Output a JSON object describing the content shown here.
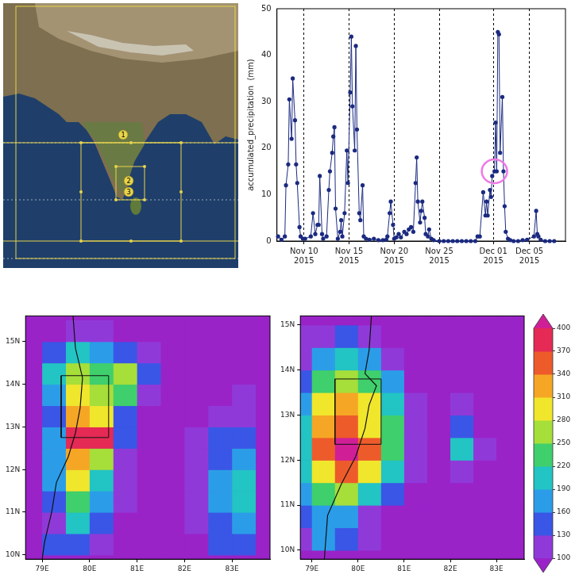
{
  "map": {
    "labels": [
      "1",
      "2",
      "3"
    ]
  },
  "chart_data": [
    {
      "type": "line",
      "ylabel": "accumulated_precipitation  (mm)",
      "color": "#1b2a80",
      "marker": "circle",
      "grid": "x",
      "xlim": [
        "2015-11-07",
        "2015-12-09"
      ],
      "ylim": [
        0,
        50
      ],
      "xticks": [
        {
          "value": "2015-11-10",
          "label": "Nov 10\n2015"
        },
        {
          "value": "2015-11-15",
          "label": "Nov 15\n2015"
        },
        {
          "value": "2015-11-20",
          "label": "Nov 20\n2015"
        },
        {
          "value": "2015-11-25",
          "label": "Nov 25\n2015"
        },
        {
          "value": "2015-12-01",
          "label": "Dec 01\n2015"
        },
        {
          "value": "2015-12-05",
          "label": "Dec 05\n2015"
        }
      ],
      "yticks": [
        0,
        10,
        20,
        30,
        40,
        50
      ],
      "highlight": {
        "x": "2015-12-01T03:00",
        "y": 15,
        "color": "#ee7ae6"
      },
      "x": [
        "2015-11-07T03:00",
        "2015-11-07T12:00",
        "2015-11-07T21:00",
        "2015-11-08T00:00",
        "2015-11-08T06:00",
        "2015-11-08T09:00",
        "2015-11-08T15:00",
        "2015-11-08T18:00",
        "2015-11-09T00:00",
        "2015-11-09T03:00",
        "2015-11-09T06:00",
        "2015-11-09T12:00",
        "2015-11-09T15:00",
        "2015-11-09T21:00",
        "2015-11-10T03:00",
        "2015-11-10T18:00",
        "2015-11-11T00:00",
        "2015-11-11T06:00",
        "2015-11-11T12:00",
        "2015-11-11T15:00",
        "2015-11-11T18:00",
        "2015-11-12T00:00",
        "2015-11-12T03:00",
        "2015-11-12T12:00",
        "2015-11-12T18:00",
        "2015-11-12T21:00",
        "2015-11-13T03:00",
        "2015-11-13T06:00",
        "2015-11-13T09:00",
        "2015-11-13T12:00",
        "2015-11-13T18:00",
        "2015-11-14T00:00",
        "2015-11-14T03:00",
        "2015-11-14T06:00",
        "2015-11-14T12:00",
        "2015-11-14T18:00",
        "2015-11-14T21:00",
        "2015-11-15T03:00",
        "2015-11-15T06:00",
        "2015-11-15T09:00",
        "2015-11-15T15:00",
        "2015-11-15T18:00",
        "2015-11-15T21:00",
        "2015-11-16T03:00",
        "2015-11-16T06:00",
        "2015-11-16T12:00",
        "2015-11-16T15:00",
        "2015-11-16T21:00",
        "2015-11-17T06:00",
        "2015-11-17T18:00",
        "2015-11-18T06:00",
        "2015-11-18T18:00",
        "2015-11-19T03:00",
        "2015-11-19T06:00",
        "2015-11-19T12:00",
        "2015-11-19T15:00",
        "2015-11-19T21:00",
        "2015-11-20T00:00",
        "2015-11-20T06:00",
        "2015-11-20T12:00",
        "2015-11-20T18:00",
        "2015-11-21T03:00",
        "2015-11-21T09:00",
        "2015-11-21T15:00",
        "2015-11-21T21:00",
        "2015-11-22T03:00",
        "2015-11-22T09:00",
        "2015-11-22T12:00",
        "2015-11-22T15:00",
        "2015-11-22T21:00",
        "2015-11-23T00:00",
        "2015-11-23T03:00",
        "2015-11-23T09:00",
        "2015-11-23T12:00",
        "2015-11-23T18:00",
        "2015-11-23T21:00",
        "2015-11-24T03:00",
        "2015-11-24T09:00",
        "2015-11-25T00:00",
        "2015-11-25T12:00",
        "2015-11-26T00:00",
        "2015-11-26T12:00",
        "2015-11-27T00:00",
        "2015-11-27T12:00",
        "2015-11-28T00:00",
        "2015-11-28T12:00",
        "2015-11-29T00:00",
        "2015-11-29T06:00",
        "2015-11-29T12:00",
        "2015-11-29T21:00",
        "2015-11-30T03:00",
        "2015-11-30T06:00",
        "2015-11-30T09:00",
        "2015-11-30T15:00",
        "2015-11-30T18:00",
        "2015-11-30T21:00",
        "2015-12-01T03:00",
        "2015-12-01T06:00",
        "2015-12-01T09:00",
        "2015-12-01T12:00",
        "2015-12-01T15:00",
        "2015-12-01T18:00",
        "2015-12-02T00:00",
        "2015-12-02T03:00",
        "2015-12-02T06:00",
        "2015-12-02T09:00",
        "2015-12-02T15:00",
        "2015-12-02T21:00",
        "2015-12-03T06:00",
        "2015-12-03T18:00",
        "2015-12-04T06:00",
        "2015-12-04T18:00",
        "2015-12-05T12:00",
        "2015-12-05T18:00",
        "2015-12-05T21:00",
        "2015-12-06T00:00",
        "2015-12-06T06:00",
        "2015-12-06T18:00",
        "2015-12-07T06:00",
        "2015-12-07T18:00"
      ],
      "values": [
        1,
        0.3,
        1,
        12,
        16.5,
        30.5,
        22,
        35,
        26,
        16.5,
        12.5,
        3,
        1,
        0.5,
        0.5,
        1,
        6,
        1.5,
        3.5,
        3.5,
        14,
        1.5,
        0.5,
        1,
        11,
        15,
        19,
        22.5,
        24.5,
        7,
        0.5,
        2,
        4.5,
        1,
        6,
        19.5,
        12.5,
        32,
        44,
        29,
        19.5,
        42,
        24,
        6,
        4.5,
        12,
        1,
        0.5,
        0.3,
        0.5,
        0.2,
        0.2,
        0.3,
        1,
        6,
        8.5,
        3.5,
        0.5,
        0.8,
        1.5,
        0.8,
        2,
        1.5,
        2.5,
        3,
        2,
        12.5,
        18,
        8.5,
        4,
        6.5,
        8.5,
        5,
        1.5,
        1,
        2.5,
        0.5,
        0.2,
        0,
        0,
        0,
        0,
        0,
        0,
        0,
        0,
        0,
        1,
        1,
        10.5,
        5.5,
        8.5,
        5.5,
        11,
        9.5,
        14,
        15,
        25.5,
        15,
        45,
        44.5,
        19,
        31,
        15,
        7.5,
        2,
        0.5,
        0.2,
        0,
        0,
        0.2,
        0.3,
        1,
        6.5,
        1.5,
        1,
        0.3,
        0,
        0,
        0
      ]
    },
    {
      "type": "heatmap",
      "xlim": [
        78.65,
        83.8
      ],
      "ylim": [
        9.9,
        15.6
      ],
      "xticks": [
        {
          "value": 79,
          "label": "79E"
        },
        {
          "value": 80,
          "label": "80E"
        },
        {
          "value": 81,
          "label": "81E"
        },
        {
          "value": 82,
          "label": "82E"
        },
        {
          "value": 83,
          "label": "83E"
        }
      ],
      "yticks": [
        {
          "value": 10,
          "label": "10N"
        },
        {
          "value": 11,
          "label": "11N"
        },
        {
          "value": 12,
          "label": "12N"
        },
        {
          "value": 13,
          "label": "13N"
        },
        {
          "value": 14,
          "label": "14N"
        },
        {
          "value": 15,
          "label": "15N"
        }
      ],
      "x": [
        78.75,
        79.25,
        79.75,
        80.25,
        80.75,
        81.25,
        81.75,
        82.25,
        82.75,
        83.25,
        83.75
      ],
      "y": [
        10.25,
        10.75,
        11.25,
        11.75,
        12.25,
        12.75,
        13.25,
        13.75,
        14.25,
        14.75,
        15.25
      ],
      "values": [
        [
          90,
          130,
          150,
          110,
          90,
          90,
          90,
          90,
          130,
          150,
          90
        ],
        [
          90,
          110,
          200,
          140,
          90,
          90,
          90,
          110,
          150,
          180,
          90
        ],
        [
          90,
          130,
          240,
          180,
          100,
          90,
          90,
          100,
          160,
          200,
          90
        ],
        [
          90,
          170,
          300,
          200,
          110,
          90,
          90,
          120,
          170,
          210,
          90
        ],
        [
          90,
          180,
          330,
          260,
          120,
          90,
          90,
          110,
          150,
          180,
          90
        ],
        [
          90,
          160,
          370,
          390,
          140,
          90,
          90,
          100,
          130,
          150,
          90
        ],
        [
          90,
          150,
          330,
          300,
          150,
          90,
          90,
          90,
          110,
          120,
          90
        ],
        [
          90,
          170,
          290,
          260,
          230,
          120,
          90,
          90,
          90,
          110,
          90
        ],
        [
          90,
          200,
          270,
          240,
          250,
          140,
          90,
          90,
          90,
          90,
          90
        ],
        [
          90,
          130,
          200,
          160,
          130,
          100,
          90,
          90,
          90,
          90,
          90
        ],
        [
          90,
          90,
          120,
          100,
          90,
          90,
          90,
          90,
          90,
          90,
          90
        ]
      ],
      "coastline": {
        "x": [
          79.0,
          79.05,
          79.2,
          79.3,
          79.55,
          79.7,
          79.8,
          79.85,
          79.7,
          79.65
        ],
        "y": [
          9.9,
          10.3,
          11.0,
          11.7,
          12.3,
          12.85,
          13.45,
          14.15,
          14.85,
          15.6
        ]
      },
      "box": {
        "x": [
          79.4,
          80.4
        ],
        "y": [
          12.75,
          14.2
        ]
      }
    },
    {
      "type": "heatmap",
      "xlim": [
        78.75,
        83.6
      ],
      "ylim": [
        9.8,
        15.2
      ],
      "xticks": [
        {
          "value": 79,
          "label": "79E"
        },
        {
          "value": 80,
          "label": "80E"
        },
        {
          "value": 81,
          "label": "81E"
        },
        {
          "value": 82,
          "label": "82E"
        },
        {
          "value": 83,
          "label": "83E"
        }
      ],
      "yticks": [
        {
          "value": 10,
          "label": "10N"
        },
        {
          "value": 11,
          "label": "11N"
        },
        {
          "value": 12,
          "label": "12N"
        },
        {
          "value": 13,
          "label": "13N"
        },
        {
          "value": 14,
          "label": "14N"
        },
        {
          "value": 15,
          "label": "15N"
        }
      ],
      "x": [
        78.75,
        79.25,
        79.75,
        80.25,
        80.75,
        81.25,
        81.75,
        82.25,
        82.75,
        83.25,
        83.75
      ],
      "y": [
        10.25,
        10.75,
        11.25,
        11.75,
        12.25,
        12.75,
        13.25,
        13.75,
        14.25,
        14.75,
        15.25
      ],
      "values": [
        [
          120,
          160,
          140,
          100,
          90,
          90,
          90,
          90,
          90,
          90,
          90
        ],
        [
          130,
          170,
          170,
          120,
          90,
          90,
          90,
          90,
          90,
          90,
          90
        ],
        [
          160,
          220,
          250,
          200,
          130,
          90,
          90,
          90,
          90,
          90,
          90
        ],
        [
          190,
          290,
          340,
          300,
          190,
          100,
          90,
          110,
          90,
          90,
          90
        ],
        [
          200,
          350,
          410,
          340,
          230,
          110,
          90,
          210,
          100,
          90,
          90
        ],
        [
          190,
          320,
          360,
          300,
          220,
          110,
          90,
          150,
          90,
          90,
          90
        ],
        [
          170,
          290,
          330,
          280,
          200,
          100,
          90,
          100,
          90,
          90,
          90
        ],
        [
          150,
          240,
          270,
          230,
          160,
          90,
          90,
          90,
          90,
          90,
          90
        ],
        [
          120,
          170,
          190,
          170,
          120,
          90,
          90,
          90,
          90,
          90,
          90
        ],
        [
          100,
          120,
          130,
          110,
          90,
          90,
          90,
          90,
          90,
          90,
          90
        ],
        [
          90,
          90,
          90,
          90,
          90,
          90,
          90,
          90,
          90,
          90,
          90
        ]
      ],
      "coastline": {
        "x": [
          79.27,
          79.34,
          79.64,
          79.95,
          80.15,
          80.24,
          80.4,
          80.15,
          80.24,
          80.29
        ],
        "y": [
          9.8,
          10.77,
          11.47,
          12.08,
          12.7,
          13.22,
          13.65,
          13.92,
          14.44,
          15.2
        ]
      },
      "box": {
        "x": [
          79.5,
          80.5
        ],
        "y": [
          12.35,
          13.8
        ]
      },
      "colorbar": {
        "range": [
          100,
          400
        ],
        "ticks": [
          100,
          130,
          160,
          190,
          220,
          250,
          280,
          310,
          340,
          370,
          400
        ],
        "colors": [
          "#8f3ad8",
          "#3a56e6",
          "#2b9de8",
          "#22c4c4",
          "#3fcf6c",
          "#a6de3a",
          "#f0e62c",
          "#f6a625",
          "#ee5b2b",
          "#e42a55"
        ],
        "under_color": "#9a23c8",
        "over_color": "#d01f96"
      }
    }
  ]
}
